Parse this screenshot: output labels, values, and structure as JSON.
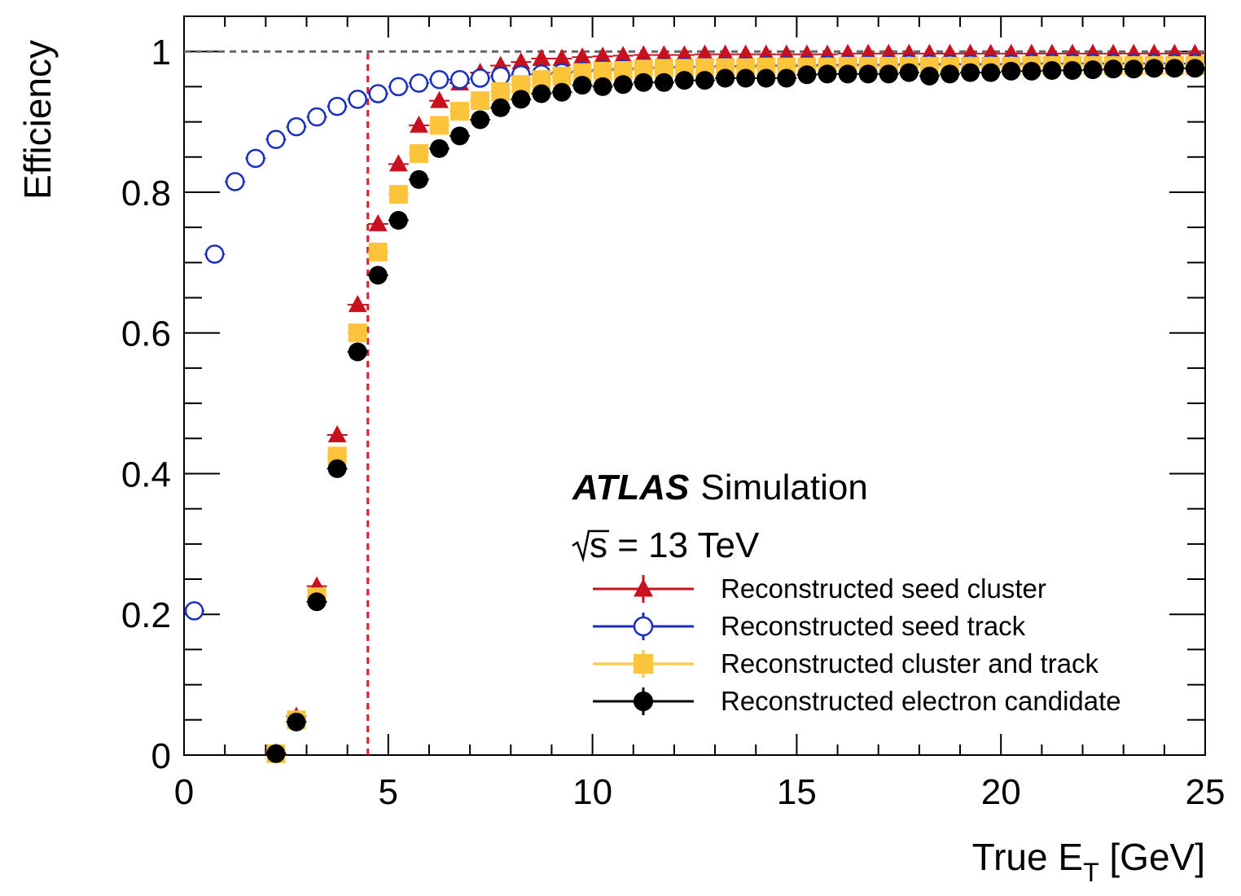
{
  "chart_data": {
    "type": "scatter",
    "xlabel": "True E",
    "xlabel_sub": "T",
    "xlabel_unit": " [GeV]",
    "ylabel": "Efficiency",
    "xlim": [
      0,
      25
    ],
    "ylim": [
      0,
      1.05
    ],
    "x_ticks": [
      "0",
      "5",
      "10",
      "15",
      "20",
      "25"
    ],
    "y_ticks": [
      "0",
      "0.2",
      "0.4",
      "0.6",
      "0.8",
      "1"
    ],
    "y_tick_values": [
      0,
      0.2,
      0.4,
      0.6,
      0.8,
      1.0
    ],
    "x_tick_values": [
      0,
      5,
      10,
      15,
      20,
      25
    ],
    "reference_lines": {
      "horizontal": 1.0,
      "vertical": 4.5
    },
    "annotation": {
      "experiment": "ATLAS",
      "label": "Simulation",
      "energy_sqrt": "s",
      "energy_rest": " = 13 TeV"
    },
    "legend_position": "bottom-right",
    "colors": {
      "seed_cluster": "#c8101e",
      "seed_track": "#1a2fbf",
      "cluster_track": "#fcc43b",
      "electron": "#000000",
      "ref_horizontal": "#666666",
      "ref_vertical": "#d61f26"
    },
    "series": [
      {
        "key": "seed_cluster",
        "name": "Reconstructed seed cluster",
        "marker": "triangle",
        "x": [
          2.25,
          2.75,
          3.25,
          3.75,
          4.25,
          4.75,
          5.25,
          5.75,
          6.25,
          6.75,
          7.25,
          7.75,
          8.25,
          8.75,
          9.25,
          9.75,
          10.25,
          10.75,
          11.25,
          11.75,
          12.25,
          12.75,
          13.25,
          13.75,
          14.25,
          14.75,
          15.25,
          15.75,
          16.25,
          16.75,
          17.25,
          17.75,
          18.25,
          18.75,
          19.25,
          19.75,
          20.25,
          20.75,
          21.25,
          21.75,
          22.25,
          22.75,
          23.25,
          23.75,
          24.25,
          24.75
        ],
        "y": [
          0.003,
          0.055,
          0.24,
          0.455,
          0.64,
          0.755,
          0.84,
          0.895,
          0.93,
          0.955,
          0.97,
          0.98,
          0.985,
          0.99,
          0.99,
          0.992,
          0.993,
          0.994,
          0.995,
          0.995,
          0.995,
          0.996,
          0.996,
          0.996,
          0.996,
          0.996,
          0.996,
          0.996,
          0.997,
          0.997,
          0.997,
          0.997,
          0.997,
          0.997,
          0.997,
          0.997,
          0.997,
          0.997,
          0.997,
          0.997,
          0.997,
          0.997,
          0.997,
          0.997,
          0.997,
          0.997
        ]
      },
      {
        "key": "seed_track",
        "name": "Reconstructed seed track",
        "marker": "open-circle",
        "x": [
          0.25,
          0.75,
          1.25,
          1.75,
          2.25,
          2.75,
          3.25,
          3.75,
          4.25,
          4.75,
          5.25,
          5.75,
          6.25,
          6.75,
          7.25,
          7.75,
          8.25,
          8.75,
          9.25,
          9.75,
          10.25,
          10.75,
          11.25,
          11.75,
          12.25,
          12.75,
          13.25,
          13.75,
          14.25,
          14.75,
          15.25,
          15.75,
          16.25,
          16.75,
          17.25,
          17.75,
          18.25,
          18.75,
          19.25,
          19.75,
          20.25,
          20.75,
          21.25,
          21.75,
          22.25,
          22.75,
          23.25,
          23.75,
          24.25,
          24.75
        ],
        "y": [
          0.205,
          0.712,
          0.815,
          0.848,
          0.875,
          0.893,
          0.907,
          0.922,
          0.932,
          0.94,
          0.95,
          0.955,
          0.96,
          0.96,
          0.962,
          0.965,
          0.967,
          0.968,
          0.97,
          0.972,
          0.974,
          0.975,
          0.976,
          0.977,
          0.978,
          0.978,
          0.979,
          0.979,
          0.98,
          0.98,
          0.98,
          0.981,
          0.981,
          0.981,
          0.981,
          0.982,
          0.982,
          0.982,
          0.982,
          0.982,
          0.982,
          0.983,
          0.983,
          0.983,
          0.983,
          0.983,
          0.983,
          0.983,
          0.983,
          0.983
        ]
      },
      {
        "key": "cluster_track",
        "name": "Reconstructed cluster and track",
        "marker": "square",
        "x": [
          2.25,
          2.75,
          3.25,
          3.75,
          4.25,
          4.75,
          5.25,
          5.75,
          6.25,
          6.75,
          7.25,
          7.75,
          8.25,
          8.75,
          9.25,
          9.75,
          10.25,
          10.75,
          11.25,
          11.75,
          12.25,
          12.75,
          13.25,
          13.75,
          14.25,
          14.75,
          15.25,
          15.75,
          16.25,
          16.75,
          17.25,
          17.75,
          18.25,
          18.75,
          19.25,
          19.75,
          20.25,
          20.75,
          21.25,
          21.75,
          22.25,
          22.75,
          23.25,
          23.75,
          24.25,
          24.75
        ],
        "y": [
          0.002,
          0.05,
          0.225,
          0.425,
          0.6,
          0.715,
          0.797,
          0.855,
          0.895,
          0.915,
          0.93,
          0.943,
          0.953,
          0.96,
          0.965,
          0.97,
          0.972,
          0.973,
          0.975,
          0.976,
          0.976,
          0.977,
          0.977,
          0.977,
          0.978,
          0.978,
          0.978,
          0.978,
          0.979,
          0.979,
          0.979,
          0.979,
          0.979,
          0.979,
          0.979,
          0.979,
          0.979,
          0.98,
          0.98,
          0.98,
          0.98,
          0.98,
          0.98,
          0.98,
          0.98,
          0.98
        ]
      },
      {
        "key": "electron",
        "name": "Reconstructed electron candidate",
        "marker": "filled-circle",
        "x": [
          2.25,
          2.75,
          3.25,
          3.75,
          4.25,
          4.75,
          5.25,
          5.75,
          6.25,
          6.75,
          7.25,
          7.75,
          8.25,
          8.75,
          9.25,
          9.75,
          10.25,
          10.75,
          11.25,
          11.75,
          12.25,
          12.75,
          13.25,
          13.75,
          14.25,
          14.75,
          15.25,
          15.75,
          16.25,
          16.75,
          17.25,
          17.75,
          18.25,
          18.75,
          19.25,
          19.75,
          20.25,
          20.75,
          21.25,
          21.75,
          22.25,
          22.75,
          23.25,
          23.75,
          24.25,
          24.75
        ],
        "y": [
          0.002,
          0.047,
          0.218,
          0.407,
          0.573,
          0.682,
          0.76,
          0.818,
          0.862,
          0.88,
          0.903,
          0.92,
          0.932,
          0.94,
          0.942,
          0.952,
          0.95,
          0.953,
          0.956,
          0.956,
          0.959,
          0.959,
          0.962,
          0.962,
          0.962,
          0.962,
          0.967,
          0.968,
          0.968,
          0.968,
          0.968,
          0.97,
          0.965,
          0.968,
          0.97,
          0.97,
          0.972,
          0.972,
          0.973,
          0.973,
          0.974,
          0.975,
          0.975,
          0.976,
          0.976,
          0.976
        ]
      }
    ]
  }
}
